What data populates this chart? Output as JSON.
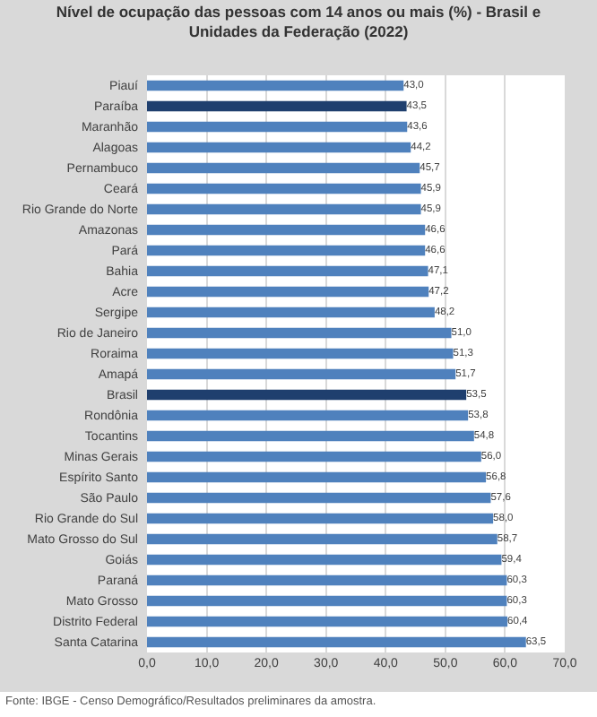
{
  "chart_data": {
    "type": "bar",
    "orientation": "horizontal",
    "title": "Nível de ocupação das pessoas com 14 anos ou mais (%) - Brasil e Unidades da Federação (2022)",
    "categories": [
      "Piauí",
      "Paraíba",
      "Maranhão",
      "Alagoas",
      "Pernambuco",
      "Ceará",
      "Rio Grande do Norte",
      "Amazonas",
      "Pará",
      "Bahia",
      "Acre",
      "Sergipe",
      "Rio de Janeiro",
      "Roraima",
      "Amapá",
      "Brasil",
      "Rondônia",
      "Tocantins",
      "Minas Gerais",
      "Espírito Santo",
      "São Paulo",
      "Rio Grande do Sul",
      "Mato Grosso do Sul",
      "Goiás",
      "Paraná",
      "Mato Grosso",
      "Distrito Federal",
      "Santa Catarina"
    ],
    "values": [
      43.0,
      43.5,
      43.6,
      44.2,
      45.7,
      45.9,
      45.9,
      46.6,
      46.6,
      47.1,
      47.2,
      48.2,
      51.0,
      51.3,
      51.7,
      53.5,
      53.8,
      54.8,
      56.0,
      56.8,
      57.6,
      58.0,
      58.7,
      59.4,
      60.3,
      60.3,
      60.4,
      63.5
    ],
    "value_labels": [
      "43,0",
      "43,5",
      "43,6",
      "44,2",
      "45,7",
      "45,9",
      "45,9",
      "46,6",
      "46,6",
      "47,1",
      "47,2",
      "48,2",
      "51,0",
      "51,3",
      "51,7",
      "53,5",
      "53,8",
      "54,8",
      "56,0",
      "56,8",
      "57,6",
      "58,0",
      "58,7",
      "59,4",
      "60,3",
      "60,3",
      "60,4",
      "63,5"
    ],
    "colors": [
      "#4f81bd",
      "#1f3f6e",
      "#4f81bd",
      "#4f81bd",
      "#4f81bd",
      "#4f81bd",
      "#4f81bd",
      "#4f81bd",
      "#4f81bd",
      "#4f81bd",
      "#4f81bd",
      "#4f81bd",
      "#4f81bd",
      "#4f81bd",
      "#4f81bd",
      "#1f3f6e",
      "#4f81bd",
      "#4f81bd",
      "#4f81bd",
      "#4f81bd",
      "#4f81bd",
      "#4f81bd",
      "#4f81bd",
      "#4f81bd",
      "#4f81bd",
      "#4f81bd",
      "#4f81bd",
      "#4f81bd"
    ],
    "xlim": [
      0,
      70
    ],
    "xticks": [
      {
        "value": 0,
        "label": "0,0"
      },
      {
        "value": 10,
        "label": "10,0"
      },
      {
        "value": 20,
        "label": "20,0"
      },
      {
        "value": 30,
        "label": "30,0"
      },
      {
        "value": 40,
        "label": "40,0"
      },
      {
        "value": 50,
        "label": "50,0"
      },
      {
        "value": 60,
        "label": "60,0"
      },
      {
        "value": 70,
        "label": "70,0"
      }
    ],
    "grid": "x",
    "annotations": [
      "Fonte: IBGE - Censo Demográfico/Resultados preliminares da amostra."
    ]
  }
}
